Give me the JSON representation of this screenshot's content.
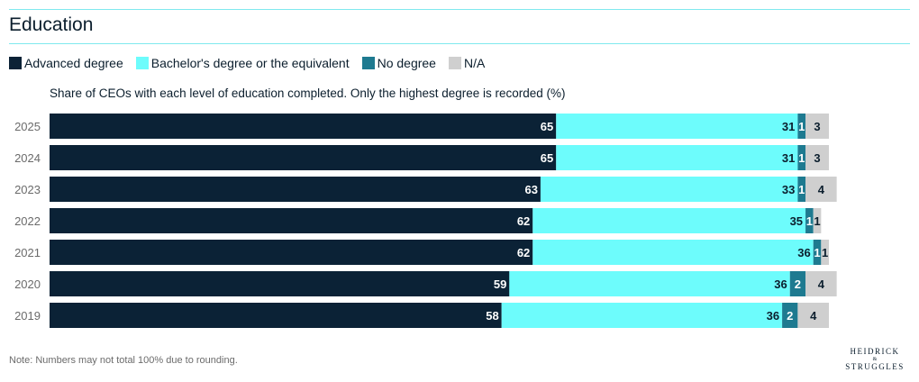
{
  "header": {
    "title": "Education"
  },
  "colors": {
    "advanced": "#0b2236",
    "bachelor": "#6dfcfc",
    "none": "#1e7a90",
    "na": "#cfcfcf",
    "rule": "#7fe9ee"
  },
  "chart_data": {
    "type": "bar",
    "orientation": "horizontal",
    "stacked": true,
    "subtitle": "Share of CEOs with each level of education completed. Only the highest degree is recorded (%)",
    "categories": [
      "2025",
      "2024",
      "2023",
      "2022",
      "2021",
      "2020",
      "2019"
    ],
    "series": [
      {
        "name": "Advanced degree",
        "values": [
          65,
          65,
          63,
          62,
          62,
          59,
          58
        ]
      },
      {
        "name": "Bachelor's degree or the equivalent",
        "values": [
          31,
          31,
          33,
          35,
          36,
          36,
          36
        ]
      },
      {
        "name": "No degree",
        "values": [
          1,
          1,
          1,
          1,
          1,
          2,
          2
        ]
      },
      {
        "name": "N/A",
        "values": [
          3,
          3,
          4,
          1,
          1,
          4,
          4
        ]
      }
    ],
    "legend_position": "top-left",
    "grid": false
  },
  "footer": {
    "note": "Note: Numbers may not total 100% due to rounding.",
    "logo_line1": "HEIDRICK",
    "logo_line2": "&",
    "logo_line3": "STRUGGLES"
  }
}
